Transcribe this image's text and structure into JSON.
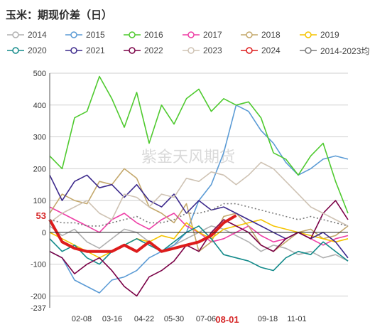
{
  "title": "玉米：期现价差（日）",
  "watermark": "紫金天风期货",
  "colors": {
    "2014": "#b0b0b0",
    "2015": "#5b9bd5",
    "2016": "#4fca2f",
    "2017": "#ee3fa6",
    "2018": "#c4a86c",
    "2019": "#f5c400",
    "2020": "#138a8a",
    "2021": "#3d2a8c",
    "2022": "#7a0046",
    "2023": "#cfc3b4",
    "2024": "#dd1c1c",
    "2014-2023均值": "#7a7a7a"
  },
  "chart_data": {
    "type": "line",
    "title": "玉米：期现价差（日）",
    "xlabel": "",
    "ylabel": "",
    "ylim": [
      -237,
      500
    ],
    "yticks": [
      500,
      400,
      300,
      200,
      100,
      0,
      -100,
      -200,
      -237
    ],
    "xticks": [
      "02-08",
      "03-16",
      "04-22",
      "05-30",
      "07-06",
      "08-01",
      "09-18",
      "11-01"
    ],
    "x_highlight": "08-01",
    "last_value_label": "53",
    "grid": true,
    "legend_position": "top",
    "legend": [
      "2014",
      "2015",
      "2016",
      "2017",
      "2018",
      "2019",
      "2020",
      "2021",
      "2022",
      "2023",
      "2024",
      "2014-2023均值"
    ],
    "x_points": [
      "01-01",
      "01-15",
      "02-01",
      "02-15",
      "03-01",
      "03-15",
      "04-01",
      "04-15",
      "05-01",
      "05-15",
      "06-01",
      "06-15",
      "07-01",
      "07-15",
      "08-01",
      "08-15",
      "09-01",
      "09-15",
      "10-01",
      "10-15",
      "11-01",
      "11-15",
      "12-01",
      "12-15",
      "12-31"
    ],
    "series": [
      {
        "name": "2014",
        "values": [
          20,
          -10,
          10,
          -30,
          -50,
          -20,
          10,
          0,
          -30,
          -60,
          -40,
          -20,
          0,
          20,
          10,
          -10,
          -30,
          -60,
          -40,
          -50,
          -70,
          -60,
          -80,
          -70,
          -90
        ]
      },
      {
        "name": "2015",
        "values": [
          -60,
          -80,
          -150,
          -170,
          -190,
          -150,
          -140,
          -120,
          -80,
          -60,
          -40,
          0,
          100,
          150,
          250,
          400,
          380,
          320,
          280,
          220,
          180,
          200,
          230,
          240,
          230
        ]
      },
      {
        "name": "2016",
        "values": [
          240,
          200,
          360,
          380,
          490,
          420,
          330,
          440,
          280,
          400,
          340,
          420,
          450,
          380,
          420,
          400,
          410,
          360,
          250,
          230,
          180,
          240,
          280,
          160,
          60
        ]
      },
      {
        "name": "2017",
        "values": [
          80,
          60,
          40,
          20,
          0,
          40,
          60,
          30,
          10,
          40,
          60,
          20,
          0,
          -30,
          -20,
          0,
          20,
          -10,
          -30,
          -20,
          0,
          -20,
          -40,
          -20,
          -10
        ]
      },
      {
        "name": "2018",
        "values": [
          60,
          120,
          100,
          90,
          160,
          150,
          200,
          170,
          80,
          60,
          30,
          90,
          -60,
          -30,
          50,
          60,
          20,
          -40,
          -60,
          -30,
          0,
          10,
          -20,
          -10,
          20
        ]
      },
      {
        "name": "2019",
        "values": [
          0,
          -20,
          -40,
          -60,
          -80,
          -60,
          -40,
          -20,
          -30,
          -10,
          -20,
          30,
          0,
          -20,
          10,
          20,
          30,
          40,
          20,
          10,
          0,
          -10,
          -20,
          -30,
          -20
        ]
      },
      {
        "name": "2020",
        "values": [
          -20,
          -60,
          -40,
          -80,
          -100,
          -60,
          -40,
          -20,
          -40,
          -60,
          -30,
          0,
          20,
          -20,
          -70,
          -80,
          -90,
          -110,
          -120,
          -80,
          -60,
          -70,
          -30,
          -60,
          -90
        ]
      },
      {
        "name": "2021",
        "values": [
          180,
          100,
          160,
          180,
          140,
          150,
          110,
          150,
          100,
          80,
          120,
          60,
          100,
          70,
          80,
          60,
          40,
          20,
          0,
          -20,
          0,
          -20,
          0,
          -30,
          -80
        ]
      },
      {
        "name": "2022",
        "values": [
          -60,
          -80,
          -130,
          -100,
          -80,
          -120,
          -170,
          -200,
          -140,
          -120,
          -90,
          -40,
          -60,
          0,
          40,
          20,
          0,
          -40,
          -60,
          -20,
          0,
          -20,
          60,
          100,
          40
        ]
      },
      {
        "name": "2023",
        "values": [
          30,
          60,
          80,
          100,
          60,
          40,
          120,
          110,
          80,
          120,
          110,
          170,
          160,
          190,
          180,
          150,
          180,
          220,
          200,
          160,
          120,
          80,
          60,
          40,
          20
        ]
      },
      {
        "name": "2024",
        "values": [
          40,
          -30,
          -50,
          -60,
          -60,
          -60,
          -40,
          -60,
          -30,
          -60,
          -50,
          -40,
          -30,
          -10,
          30,
          53
        ]
      },
      {
        "name": "2014-2023均值",
        "values": [
          40,
          30,
          30,
          20,
          20,
          30,
          40,
          50,
          30,
          30,
          40,
          60,
          60,
          70,
          90,
          90,
          80,
          70,
          60,
          50,
          40,
          50,
          40,
          30,
          20
        ]
      }
    ]
  }
}
